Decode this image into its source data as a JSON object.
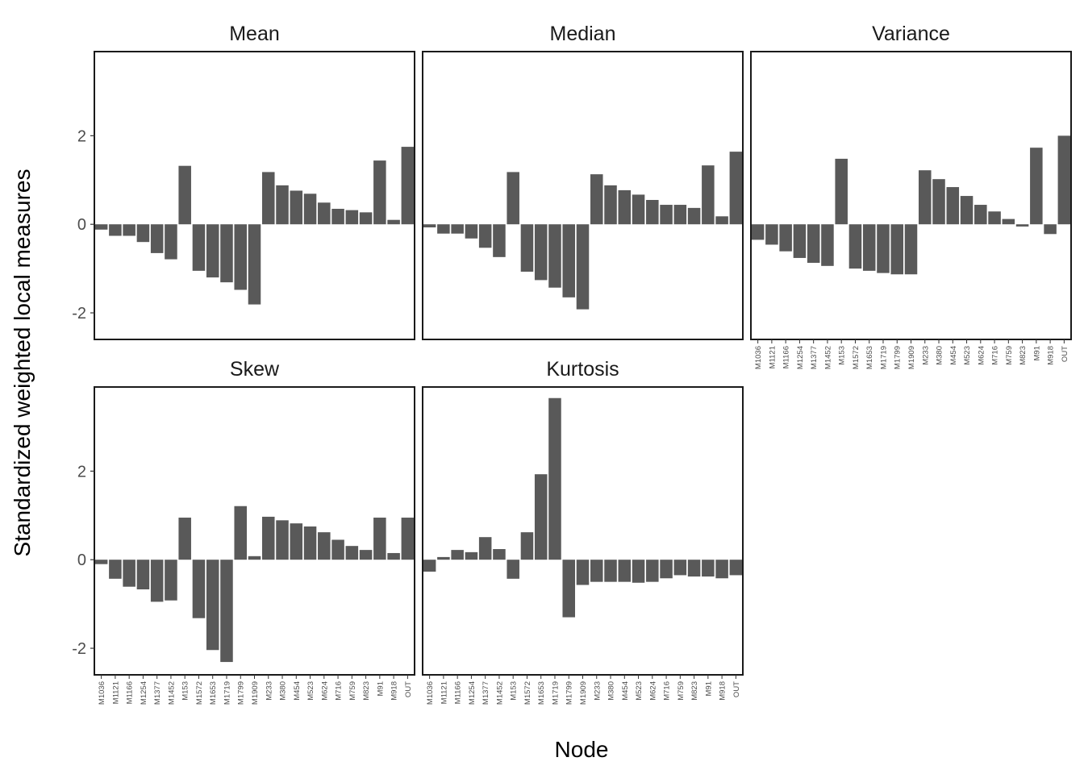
{
  "chart_data": {
    "type": "bar",
    "xlabel": "Node",
    "ylabel": "Standardized weighted local measures",
    "ylim": [
      -2.6,
      3.9
    ],
    "yticks": [
      -2,
      0,
      2
    ],
    "ytick_labels": [
      "-2",
      "0",
      "2"
    ],
    "categories": [
      "M1036",
      "M1121",
      "M1166",
      "M1254",
      "M1377",
      "M1452",
      "M153",
      "M1572",
      "M1653",
      "M1719",
      "M1799",
      "M1909",
      "M233",
      "M380",
      "M454",
      "M523",
      "M624",
      "M716",
      "M759",
      "M823",
      "M91",
      "M918",
      "OUT"
    ],
    "panels": [
      {
        "title": "Mean",
        "values": [
          -0.12,
          -0.26,
          -0.26,
          -0.4,
          -0.65,
          -0.79,
          1.32,
          -1.05,
          -1.2,
          -1.31,
          -1.48,
          -1.81,
          1.18,
          0.88,
          0.76,
          0.69,
          0.49,
          0.35,
          0.32,
          0.27,
          1.44,
          0.1,
          1.75
        ]
      },
      {
        "title": "Median",
        "values": [
          -0.07,
          -0.21,
          -0.21,
          -0.32,
          -0.53,
          -0.74,
          1.18,
          -1.07,
          -1.26,
          -1.43,
          -1.65,
          -1.92,
          1.13,
          0.88,
          0.77,
          0.67,
          0.55,
          0.44,
          0.44,
          0.37,
          1.33,
          0.18,
          1.64
        ]
      },
      {
        "title": "Variance",
        "values": [
          -0.35,
          -0.46,
          -0.61,
          -0.76,
          -0.87,
          -0.94,
          1.48,
          -1.0,
          -1.05,
          -1.1,
          -1.13,
          -1.13,
          1.22,
          1.02,
          0.84,
          0.64,
          0.44,
          0.29,
          0.12,
          -0.05,
          1.73,
          -0.22,
          2.0
        ]
      },
      {
        "title": "Skew",
        "values": [
          -0.1,
          -0.43,
          -0.61,
          -0.67,
          -0.95,
          -0.92,
          0.95,
          -1.32,
          -2.04,
          -2.31,
          1.21,
          0.08,
          0.97,
          0.89,
          0.82,
          0.75,
          0.62,
          0.45,
          0.31,
          0.22,
          0.95,
          0.15,
          0.95
        ]
      },
      {
        "title": "Kurtosis",
        "values": [
          -0.27,
          0.06,
          0.22,
          0.17,
          0.51,
          0.24,
          -0.43,
          0.62,
          1.93,
          3.65,
          -1.3,
          -0.57,
          -0.5,
          -0.5,
          -0.5,
          -0.52,
          -0.5,
          -0.42,
          -0.35,
          -0.38,
          -0.38,
          -0.42,
          -0.35
        ]
      }
    ]
  }
}
